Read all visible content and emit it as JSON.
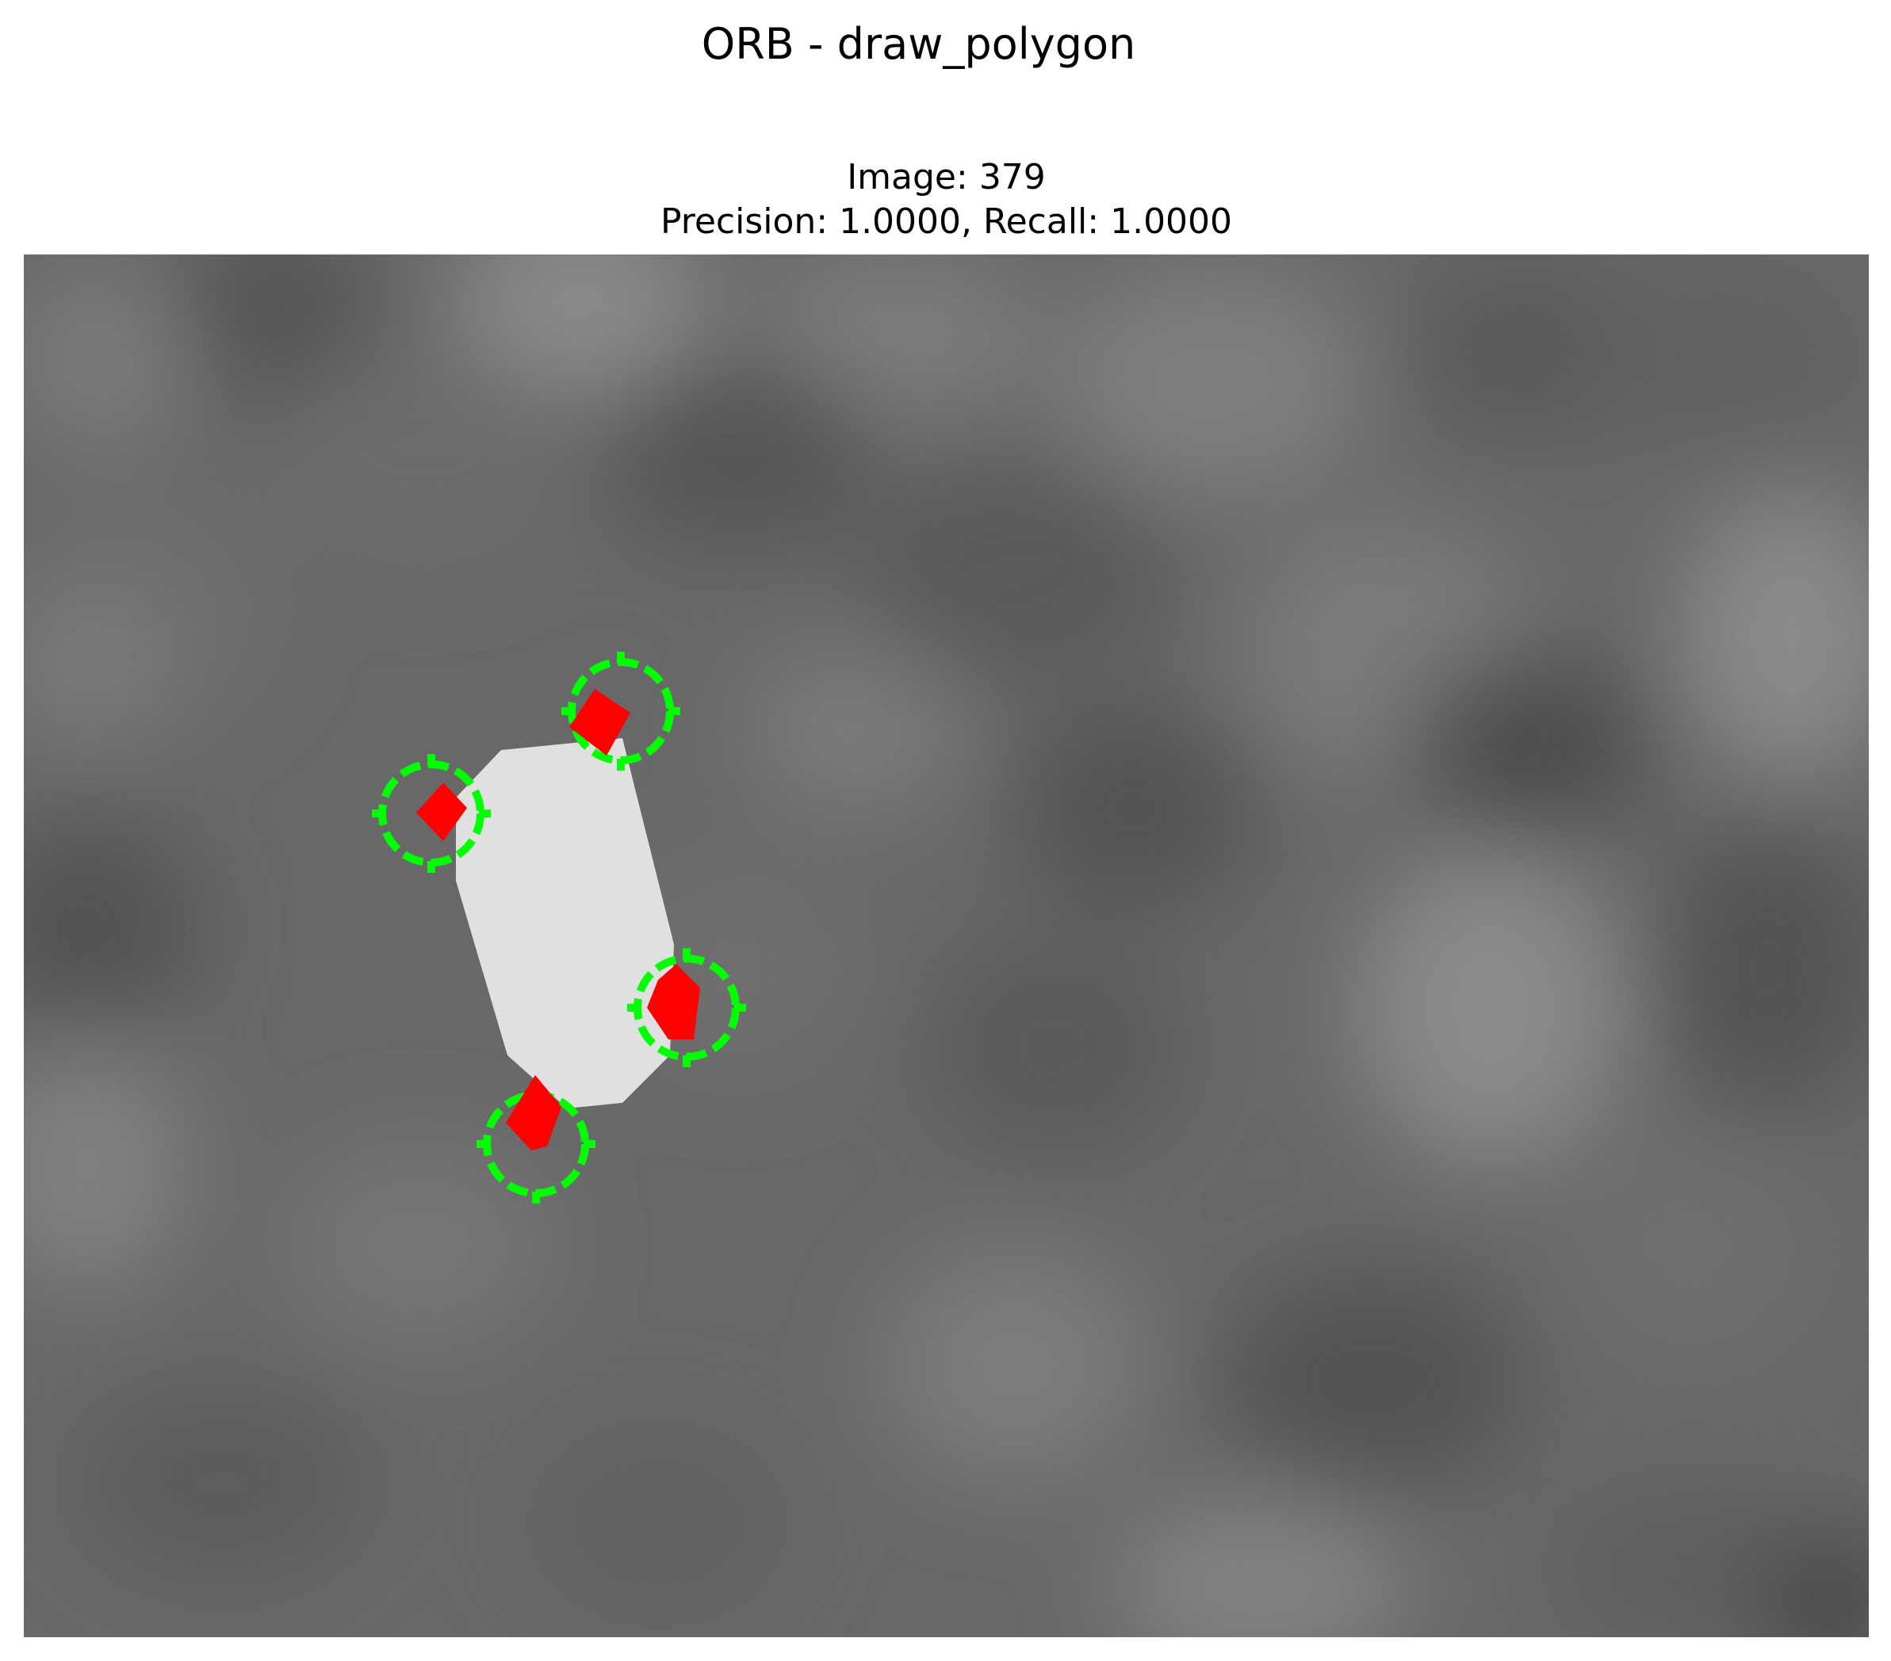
{
  "figure": {
    "title": "ORB - draw_polygon",
    "image_label": "Image: 379",
    "metrics_label": "Precision: 1.0000, Recall: 1.0000"
  },
  "colors": {
    "ground_truth_marker": "#00ff00",
    "detected_keypoint": "#ff0000",
    "polygon_fill": "#e0e0e0",
    "background_gray": "#6a6a6a"
  },
  "markers": {
    "ground_truth_count": 4,
    "detected_count": 4
  }
}
